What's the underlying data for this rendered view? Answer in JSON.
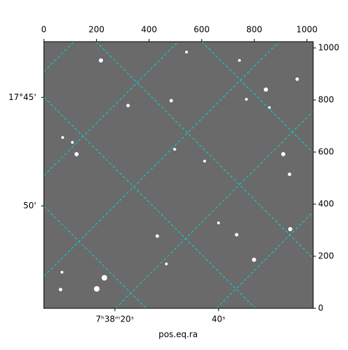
{
  "chart_data": {
    "type": "image",
    "xlabel": "pos.eq.ra",
    "xlim": [
      0,
      1024
    ],
    "ylim": [
      0,
      1024
    ],
    "xticks": [
      0,
      200,
      400,
      600,
      800,
      1000
    ],
    "yticks": [
      0,
      200,
      400,
      600,
      800,
      1000
    ],
    "ra_ticks": [
      {
        "value": 270,
        "label": "7ʰ38ᵐ20ˢ"
      },
      {
        "value": 664,
        "label": "40ˢ"
      }
    ],
    "dec_ticks": [
      {
        "value": 810,
        "label": "17°45'"
      },
      {
        "value": 393,
        "label": "50'"
      }
    ],
    "grid": true,
    "grid_color": "#00d8d8",
    "background": "#6a6a6a"
  }
}
